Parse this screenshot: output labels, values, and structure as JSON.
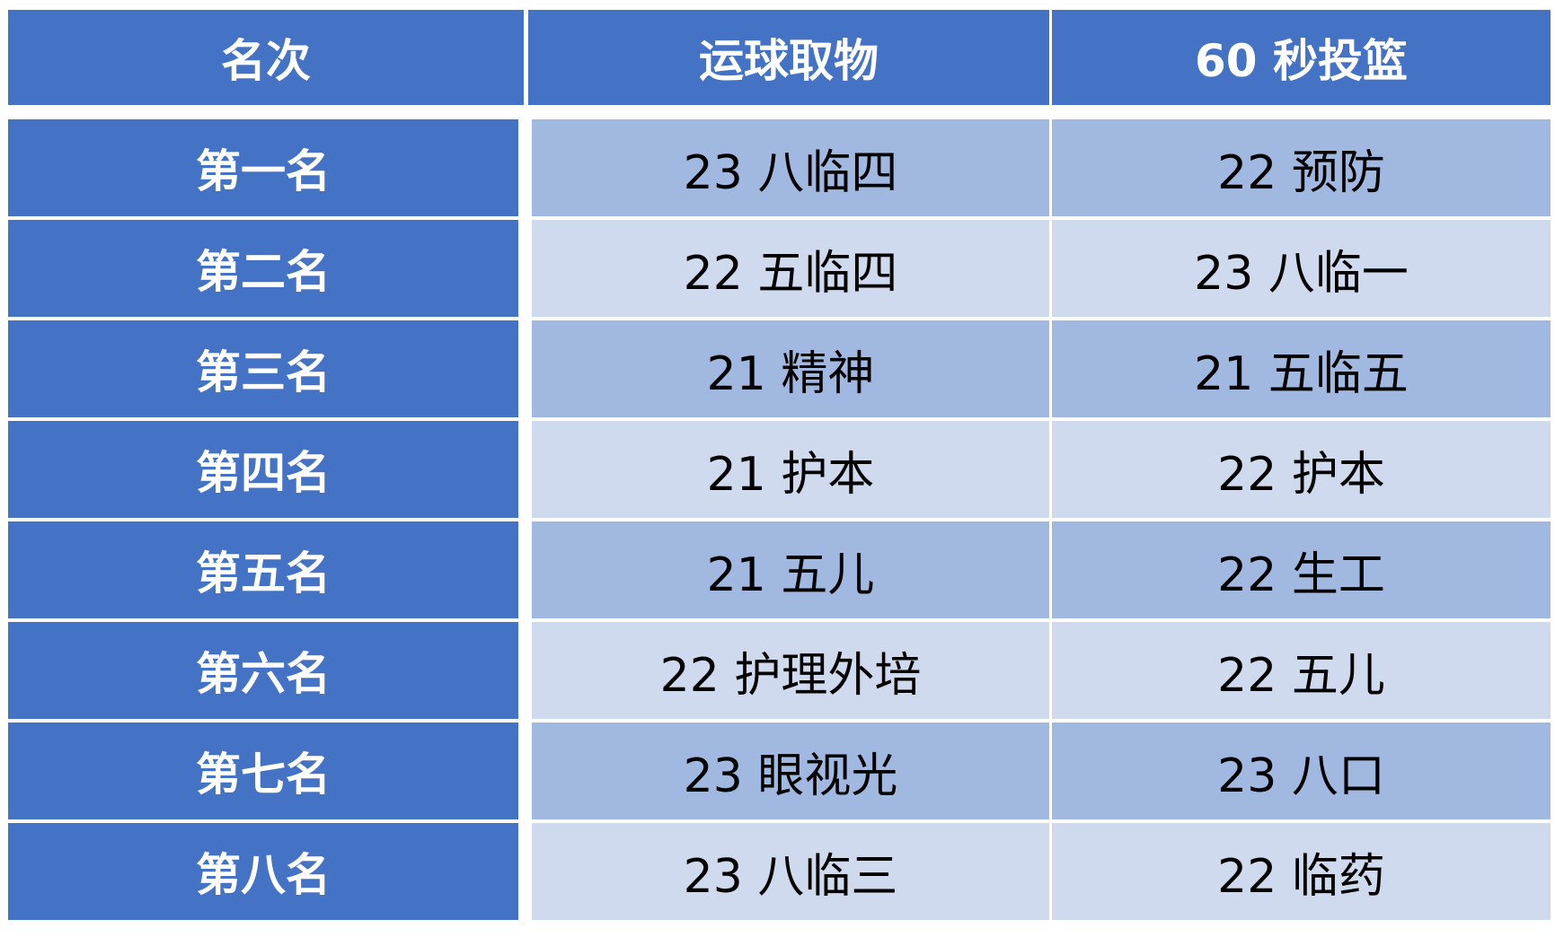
{
  "colors": {
    "header": "#4472c4",
    "row_odd": "#a1b8e1",
    "row_even": "#cfdaee"
  },
  "headers": [
    "名次",
    "运球取物",
    "60 秒投篮"
  ],
  "rows": [
    {
      "rank": "第一名",
      "dribble": "23 八临四",
      "shooting": "22 预防"
    },
    {
      "rank": "第二名",
      "dribble": "22 五临四",
      "shooting": "23 八临一"
    },
    {
      "rank": "第三名",
      "dribble": "21 精神",
      "shooting": "21 五临五"
    },
    {
      "rank": "第四名",
      "dribble": "21 护本",
      "shooting": "22 护本"
    },
    {
      "rank": "第五名",
      "dribble": "21 五儿",
      "shooting": "22 生工"
    },
    {
      "rank": "第六名",
      "dribble": "22 护理外培",
      "shooting": "22 五儿"
    },
    {
      "rank": "第七名",
      "dribble": "23 眼视光",
      "shooting": "23 八口"
    },
    {
      "rank": "第八名",
      "dribble": "23 八临三",
      "shooting": "22 临药"
    }
  ]
}
